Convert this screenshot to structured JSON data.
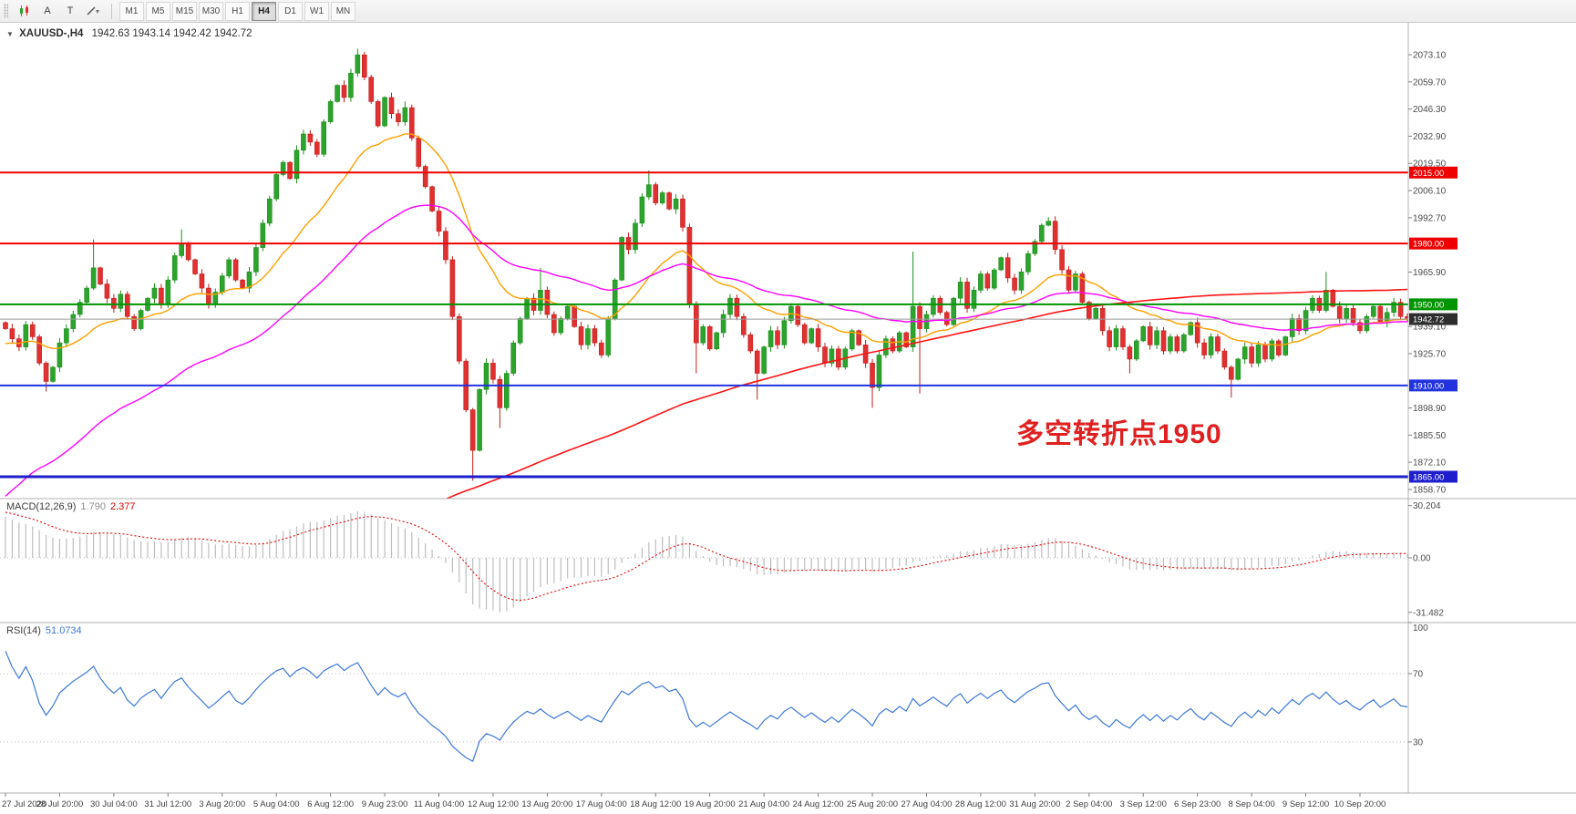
{
  "toolbar": {
    "tools": [
      {
        "id": "chart-candles-icon"
      },
      {
        "id": "cursor-tool-button",
        "label": "A"
      },
      {
        "id": "text-tool-button",
        "label": "T"
      },
      {
        "id": "shapes-tool-button"
      }
    ],
    "timeframes": [
      "M1",
      "M5",
      "M15",
      "M30",
      "H1",
      "H4",
      "D1",
      "W1",
      "MN"
    ],
    "selected_timeframe": "H4"
  },
  "main": {
    "header": {
      "dropdown_glyph": "▼",
      "symbol": "XAUUSD-,H4",
      "ohlc": "1942.63 1943.14 1942.42 1942.72"
    },
    "axis_values": [
      2073.1,
      2059.7,
      2046.3,
      2032.9,
      2019.5,
      2006.1,
      1992.7,
      1965.9,
      1939.1,
      1925.7,
      1898.9,
      1885.5,
      1872.1,
      1858.7
    ],
    "hlines": [
      {
        "price": 2015.0,
        "label": "2015.00",
        "color": "#ee0000",
        "width": 2
      },
      {
        "price": 1980.0,
        "label": "1980.00",
        "color": "#ee0000",
        "width": 2
      },
      {
        "price": 1950.0,
        "label": "1950.00",
        "color": "#009400",
        "width": 2
      },
      {
        "price": 1910.0,
        "label": "1910.00",
        "color": "#2233dd",
        "width": 2
      },
      {
        "price": 1865.0,
        "label": "1865.00",
        "color": "#1e1ecc",
        "width": 3
      }
    ],
    "current_price": {
      "value": 1942.72,
      "label": "1942.72",
      "line_color": "#9b9b9b",
      "tag_bg": "#2d2d2d"
    },
    "annotation": {
      "text": "多空转折点1950",
      "color": "#e02020"
    }
  },
  "indicators": {
    "macd": {
      "name": "MACD(12,26,9)",
      "value_main": "1.790",
      "value_signal": "2.377",
      "axis_labels": [
        "30.204",
        "0.00",
        "-31.482"
      ],
      "axis_values": [
        30.204,
        0,
        -31.482
      ],
      "params": {
        "fast": 12,
        "slow": 26,
        "signal": 9,
        "seed_fast": 1930,
        "seed_slow": 1905,
        "seed_signal": 27
      },
      "histogram_color": "#bdbdbd",
      "signal_color": "#ee0000"
    },
    "rsi": {
      "name": "RSI(14)",
      "value": "51.0734",
      "axis_values": [
        100,
        70,
        30
      ],
      "levels": [
        70,
        30
      ],
      "params": {
        "period": 14,
        "seed_gain": 2.5,
        "seed_loss": 0.5
      },
      "line_color": "#3c78d8"
    }
  },
  "time_axis": {
    "labels": [
      "27 Jul 2020",
      "28 Jul 20:00",
      "30 Jul 04:00",
      "31 Jul 12:00",
      "3 Aug 20:00",
      "5 Aug 04:00",
      "6 Aug 12:00",
      "9 Aug 23:00",
      "11 Aug 04:00",
      "12 Aug 12:00",
      "13 Aug 20:00",
      "17 Aug 04:00",
      "18 Aug 12:00",
      "19 Aug 20:00",
      "21 Aug 04:00",
      "24 Aug 12:00",
      "25 Aug 20:00",
      "27 Aug 04:00",
      "28 Aug 12:00",
      "31 Aug 20:00",
      "2 Sep 04:00",
      "3 Sep 12:00",
      "6 Sep 23:00",
      "8 Sep 04:00",
      "9 Sep 12:00",
      "10 Sep 20:00"
    ],
    "bars_per_label": 8
  },
  "chart_data": {
    "type": "candlestick",
    "symbol": "XAUUSD",
    "timeframe": "H4",
    "first_open": 1941,
    "closes": [
      1938,
      1933,
      1929,
      1940,
      1934,
      1921,
      1912,
      1919,
      1931,
      1938,
      1945,
      1951,
      1958,
      1968,
      1960,
      1953,
      1948,
      1955,
      1944,
      1938,
      1947,
      1953,
      1958,
      1950,
      1962,
      1974,
      1980,
      1972,
      1965,
      1958,
      1950,
      1956,
      1964,
      1972,
      1962,
      1958,
      1966,
      1978,
      1990,
      2002,
      2014,
      2020,
      2012,
      2026,
      2034,
      2030,
      2024,
      2040,
      2050,
      2058,
      2052,
      2064,
      2073,
      2062,
      2050,
      2038,
      2052,
      2044,
      2040,
      2047,
      2032,
      2018,
      2008,
      1996,
      1986,
      1972,
      1944,
      1922,
      1898,
      1878,
      1908,
      1921,
      1913,
      1899,
      1916,
      1931,
      1943,
      1953,
      1947,
      1957,
      1945,
      1936,
      1943,
      1949,
      1939,
      1930,
      1938,
      1931,
      1925,
      1943,
      1962,
      1983,
      1977,
      1990,
      2003,
      2009,
      2000,
      2005,
      1997,
      2002,
      1988,
      1950,
      1931,
      1939,
      1928,
      1936,
      1945,
      1953,
      1944,
      1935,
      1927,
      1916,
      1929,
      1937,
      1930,
      1942,
      1949,
      1940,
      1931,
      1938,
      1929,
      1921,
      1928,
      1919,
      1928,
      1937,
      1930,
      1921,
      1909,
      1925,
      1933,
      1927,
      1936,
      1929,
      1949,
      1938,
      1945,
      1953,
      1946,
      1940,
      1953,
      1961,
      1948,
      1957,
      1965,
      1958,
      1967,
      1973,
      1963,
      1957,
      1966,
      1975,
      1981,
      1989,
      1991,
      1977,
      1967,
      1957,
      1965,
      1951,
      1943,
      1948,
      1937,
      1929,
      1938,
      1929,
      1923,
      1932,
      1939,
      1930,
      1937,
      1927,
      1934,
      1927,
      1935,
      1941,
      1931,
      1925,
      1934,
      1927,
      1919,
      1913,
      1923,
      1929,
      1921,
      1930,
      1923,
      1932,
      1925,
      1934,
      1943,
      1937,
      1947,
      1953,
      1947,
      1957,
      1949,
      1943,
      1948,
      1941,
      1937,
      1944,
      1949,
      1941,
      1946,
      1951,
      1944,
      1942.7
    ],
    "spike_highs": {
      "13": 1982,
      "26": 1987,
      "52": 2076,
      "59": 2050,
      "79": 1968,
      "95": 2016,
      "134": 1976,
      "154": 1993,
      "195": 1966
    },
    "spike_lows": {
      "6": 1907,
      "69": 1863,
      "73": 1889,
      "102": 1916,
      "111": 1903,
      "128": 1899,
      "135": 1906,
      "166": 1916,
      "181": 1904
    },
    "moving_averages": [
      {
        "id": "ma-fast",
        "type": "ema",
        "period": 21,
        "seed": 1930,
        "color": "#ff9f00",
        "width": 1.4
      },
      {
        "id": "ma-mid",
        "type": "ema",
        "period": 50,
        "seed": 1852,
        "color": "#ff00ff",
        "width": 1.4
      },
      {
        "id": "ma-slow",
        "type": "sma",
        "period": 200,
        "pre_start": 1500,
        "pre_end": 1935,
        "color": "#ff1414",
        "width": 1.6
      }
    ],
    "colors": {
      "up_fill": "#2ca32c",
      "up_stroke": "#1f8f1f",
      "down_fill": "#e03030",
      "down_stroke": "#c21f1f"
    }
  }
}
